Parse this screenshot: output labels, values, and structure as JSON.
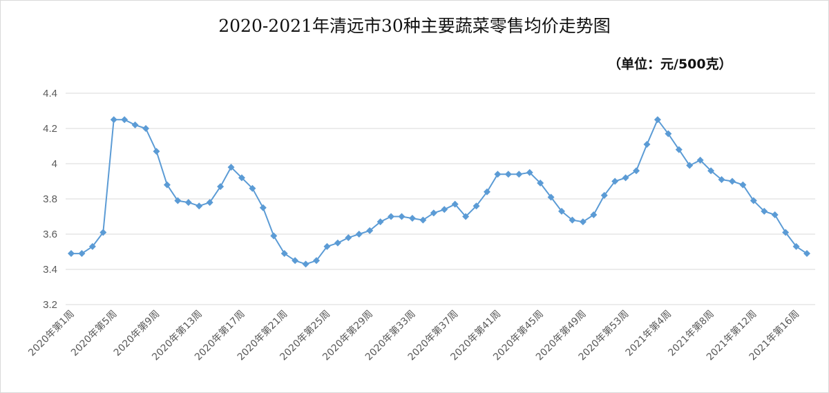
{
  "chart_data": {
    "type": "line",
    "title": "2020-2021年清远市30种主要蔬菜零售均价走势图",
    "unit_label": "（单位：元/500克）",
    "ylim": [
      3.2,
      4.4
    ],
    "yticks": [
      3.2,
      3.4,
      3.6,
      3.8,
      4,
      4.2,
      4.4
    ],
    "grid": true,
    "color": "#5b9bd5",
    "x": [
      "2020年第1周",
      "2020年第2周",
      "2020年第3周",
      "2020年第4周",
      "2020年第5周",
      "2020年第6周",
      "2020年第7周",
      "2020年第8周",
      "2020年第9周",
      "2020年第10周",
      "2020年第11周",
      "2020年第12周",
      "2020年第13周",
      "2020年第14周",
      "2020年第15周",
      "2020年第16周",
      "2020年第17周",
      "2020年第18周",
      "2020年第19周",
      "2020年第20周",
      "2020年第21周",
      "2020年第22周",
      "2020年第23周",
      "2020年第24周",
      "2020年第25周",
      "2020年第26周",
      "2020年第27周",
      "2020年第28周",
      "2020年第29周",
      "2020年第30周",
      "2020年第31周",
      "2020年第32周",
      "2020年第33周",
      "2020年第34周",
      "2020年第35周",
      "2020年第36周",
      "2020年第37周",
      "2020年第38周",
      "2020年第39周",
      "2020年第40周",
      "2020年第41周",
      "2020年第42周",
      "2020年第43周",
      "2020年第44周",
      "2020年第45周",
      "2020年第46周",
      "2020年第47周",
      "2020年第48周",
      "2020年第49周",
      "2020年第50周",
      "2020年第51周",
      "2020年第52周",
      "2020年第53周",
      "2021年第1周",
      "2021年第2周",
      "2021年第3周",
      "2021年第4周",
      "2021年第5周",
      "2021年第6周",
      "2021年第7周",
      "2021年第8周",
      "2021年第9周",
      "2021年第10周",
      "2021年第11周",
      "2021年第12周",
      "2021年第13周",
      "2021年第14周",
      "2021年第15周",
      "2021年第16周",
      "2021年第17周"
    ],
    "values": [
      3.49,
      3.49,
      3.53,
      3.61,
      4.25,
      4.25,
      4.22,
      4.2,
      4.07,
      3.88,
      3.79,
      3.78,
      3.76,
      3.78,
      3.87,
      3.98,
      3.92,
      3.86,
      3.75,
      3.59,
      3.49,
      3.45,
      3.43,
      3.45,
      3.53,
      3.55,
      3.58,
      3.6,
      3.62,
      3.67,
      3.7,
      3.7,
      3.69,
      3.68,
      3.72,
      3.74,
      3.77,
      3.7,
      3.76,
      3.84,
      3.94,
      3.94,
      3.94,
      3.95,
      3.89,
      3.81,
      3.73,
      3.68,
      3.67,
      3.71,
      3.82,
      3.9,
      3.92,
      3.96,
      4.11,
      4.25,
      4.17,
      4.08,
      3.99,
      4.02,
      3.96,
      3.91,
      3.9,
      3.88,
      3.79,
      3.73,
      3.71,
      3.61,
      3.53,
      3.49
    ],
    "labeled_ticks": [
      "2020年第1周",
      "2020年第5周",
      "2020年第9周",
      "2020年第13周",
      "2020年第17周",
      "2020年第21周",
      "2020年第25周",
      "2020年第29周",
      "2020年第33周",
      "2020年第37周",
      "2020年第41周",
      "2020年第45周",
      "2020年第49周",
      "2020年第53周",
      "2021年第4周",
      "2021年第8周",
      "2021年第12周",
      "2021年第16周"
    ]
  }
}
